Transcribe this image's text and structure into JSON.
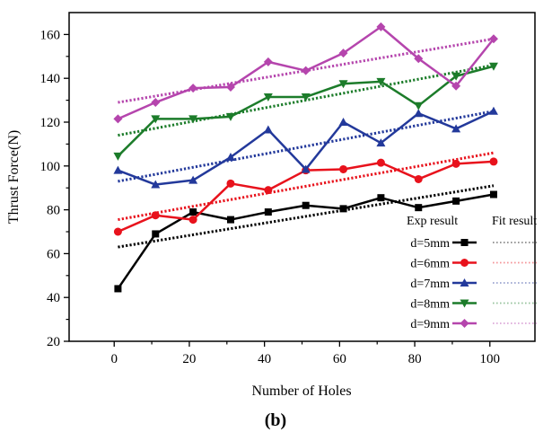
{
  "chart_data": {
    "type": "line",
    "caption": "(b)",
    "xlabel": "Number of Holes",
    "ylabel": "Thrust Force(N)",
    "xlim": [
      -12,
      112
    ],
    "ylim": [
      20,
      170
    ],
    "xticks": [
      0,
      20,
      40,
      60,
      80,
      100
    ],
    "yticks": [
      20,
      40,
      60,
      80,
      100,
      120,
      140,
      160
    ],
    "grid": false,
    "legend": {
      "placement": "bottom-right",
      "header_exp": "Exp result",
      "header_fit": "Fit result"
    },
    "x": [
      1,
      11,
      21,
      31,
      41,
      51,
      61,
      71,
      81,
      91,
      101
    ],
    "series": [
      {
        "name": "d=5mm",
        "color": "#000000",
        "marker": "square",
        "values": [
          44,
          69,
          79,
          75.5,
          79,
          82,
          80.5,
          85.5,
          81,
          84,
          87
        ],
        "fit": [
          63,
          91
        ]
      },
      {
        "name": "d=6mm",
        "color": "#e8121c",
        "marker": "circle",
        "values": [
          70,
          77.5,
          75.5,
          92,
          89,
          98,
          98.5,
          101.5,
          94,
          101,
          102
        ],
        "fit": [
          75.5,
          106
        ]
      },
      {
        "name": "d=7mm",
        "color": "#23399b",
        "marker": "triangle-up",
        "values": [
          98,
          91.5,
          93.5,
          104,
          116.5,
          98.5,
          120,
          110.5,
          124,
          117,
          125
        ],
        "fit": [
          93,
          125
        ]
      },
      {
        "name": "d=8mm",
        "color": "#1c7c2a",
        "marker": "triangle-down",
        "values": [
          104.5,
          121.5,
          121.5,
          122.5,
          131.5,
          131.5,
          137.5,
          138.5,
          127.5,
          141,
          145.5
        ],
        "fit": [
          114,
          146
        ]
      },
      {
        "name": "d=9mm",
        "color": "#b545ad",
        "marker": "diamond",
        "values": [
          121.5,
          129,
          135.5,
          136,
          147.5,
          143.5,
          151.5,
          163.5,
          149,
          136.5,
          158
        ],
        "fit": [
          129,
          158
        ]
      }
    ]
  }
}
